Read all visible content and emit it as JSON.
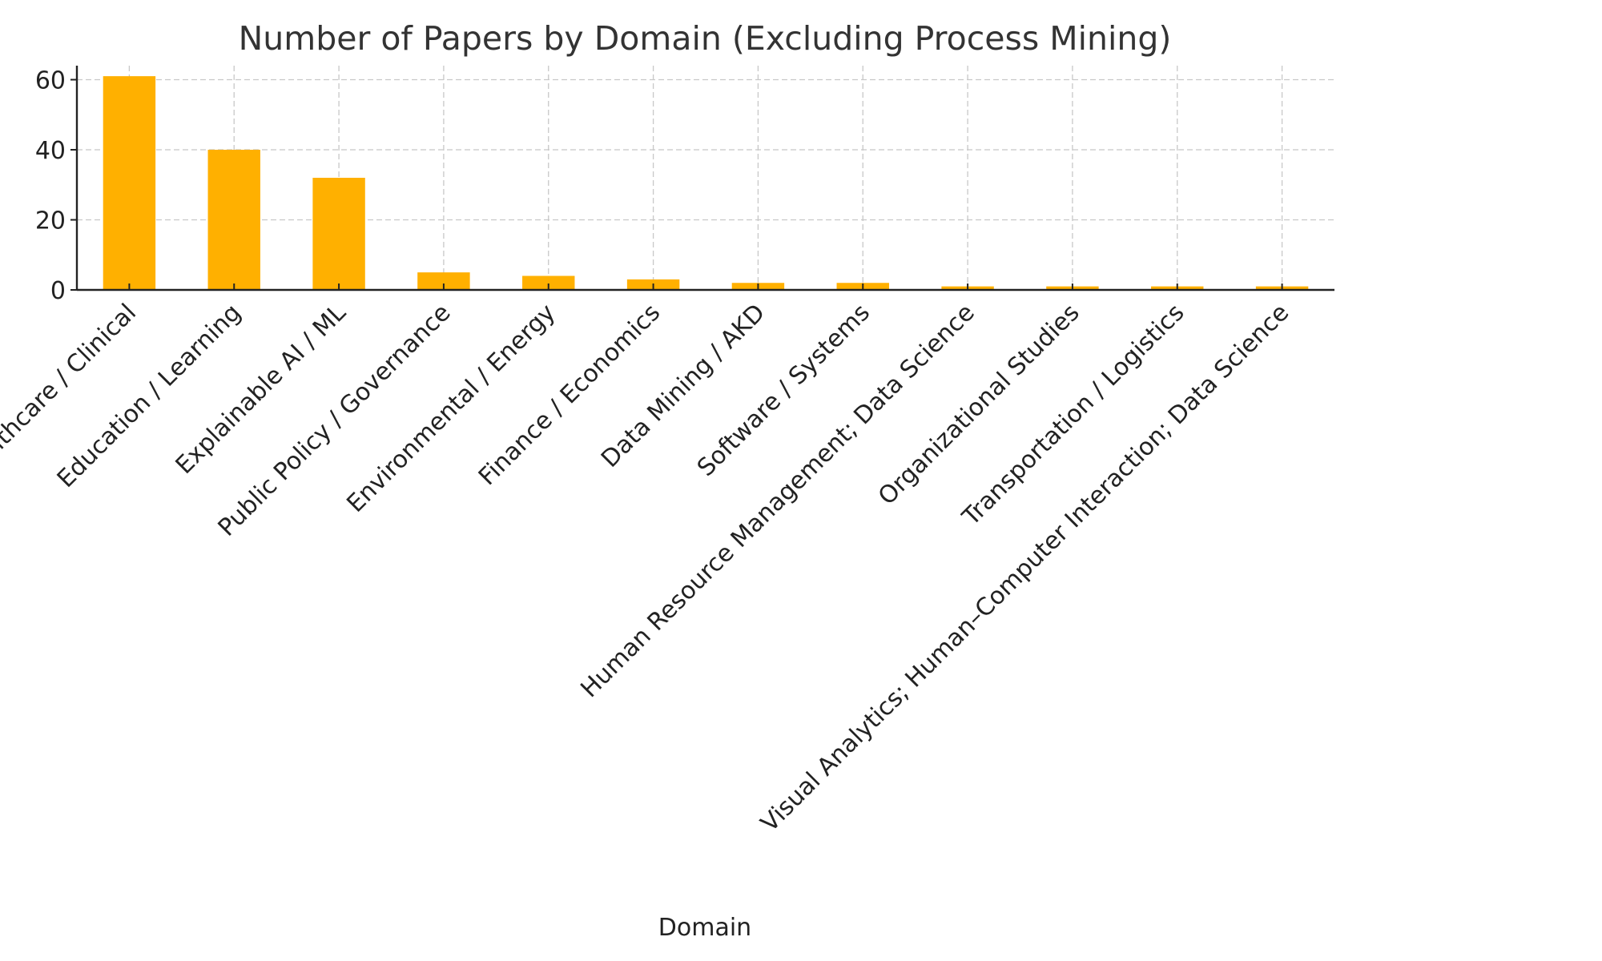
{
  "chart_data": {
    "type": "bar",
    "title": "Number of Papers by Domain (Excluding Process Mining)",
    "xlabel": "Domain",
    "ylabel": "",
    "ylim": [
      0,
      64
    ],
    "yticks": [
      0,
      20,
      40,
      60
    ],
    "grid": true,
    "bar_color": "#FFB000",
    "categories": [
      "Healthcare / Clinical",
      "Education / Learning",
      "Explainable AI / ML",
      "Public Policy / Governance",
      "Environmental / Energy",
      "Finance / Economics",
      "Data Mining / AKD",
      "Software / Systems",
      "Human Resource Management; Data Science",
      "Organizational Studies",
      "Transportation / Logistics",
      "Visual Analytics; Human–Computer Interaction; Data Science"
    ],
    "values": [
      61,
      40,
      32,
      5,
      4,
      3,
      2,
      2,
      1,
      1,
      1,
      1
    ]
  }
}
